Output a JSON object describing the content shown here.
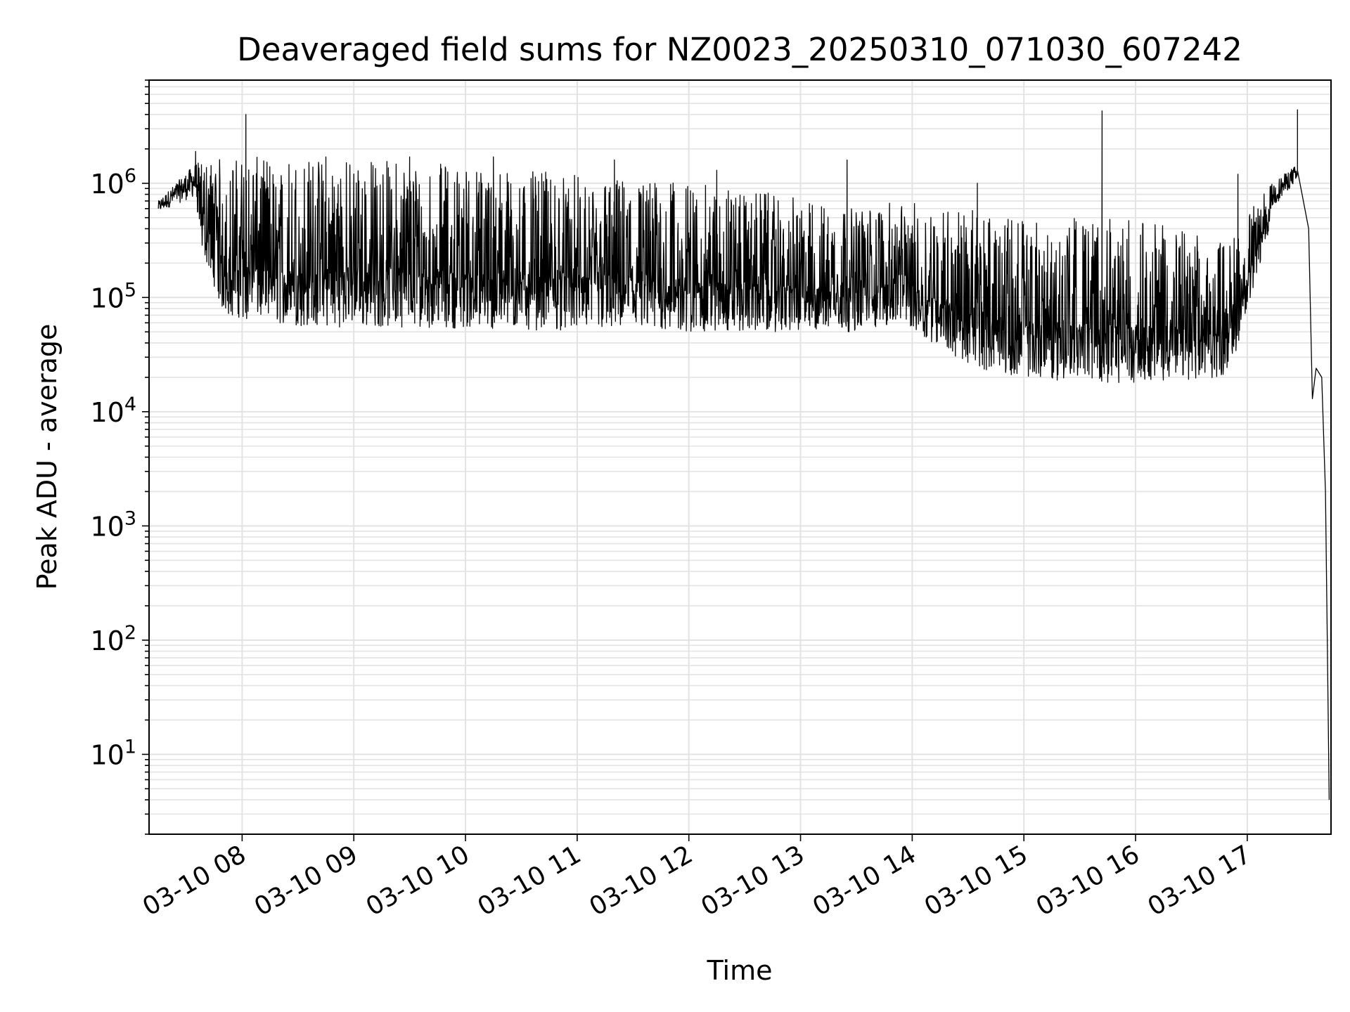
{
  "chart_data": {
    "type": "line",
    "title": "Deaveraged field sums for NZ0023_20250310_071030_607242",
    "xlabel": "Time",
    "ylabel": "Peak ADU - average",
    "xscale": "time",
    "yscale": "log",
    "xlim": [
      "03-10 07:10",
      "03-10 17:45"
    ],
    "ylim": [
      2,
      8000000
    ],
    "grid": "major and minor, light gray",
    "legend": "none",
    "line_color": "#000000",
    "yticks": [
      {
        "value": 10,
        "base": "10",
        "exp": "1"
      },
      {
        "value": 100,
        "base": "10",
        "exp": "2"
      },
      {
        "value": 1000,
        "base": "10",
        "exp": "3"
      },
      {
        "value": 10000,
        "base": "10",
        "exp": "4"
      },
      {
        "value": 100000,
        "base": "10",
        "exp": "5"
      },
      {
        "value": 1000000,
        "base": "10",
        "exp": "6"
      }
    ],
    "xticks": [
      {
        "time": "08:00",
        "label": "03-10 08"
      },
      {
        "time": "09:00",
        "label": "03-10 09"
      },
      {
        "time": "10:00",
        "label": "03-10 10"
      },
      {
        "time": "11:00",
        "label": "03-10 11"
      },
      {
        "time": "12:00",
        "label": "03-10 12"
      },
      {
        "time": "13:00",
        "label": "03-10 13"
      },
      {
        "time": "14:00",
        "label": "03-10 14"
      },
      {
        "time": "15:00",
        "label": "03-10 15"
      },
      {
        "time": "16:00",
        "label": "03-10 16"
      },
      {
        "time": "17:00",
        "label": "03-10 17"
      }
    ],
    "series": [
      {
        "baseline_envelope": [
          {
            "time": "07:15",
            "low": 450000,
            "high": 700000
          },
          {
            "time": "07:35",
            "low": 400000,
            "high": 1500000
          },
          {
            "time": "07:50",
            "low": 70000,
            "high": 1700000
          },
          {
            "time": "08:30",
            "low": 55000,
            "high": 1700000
          },
          {
            "time": "09:30",
            "low": 55000,
            "high": 1600000
          },
          {
            "time": "10:30",
            "low": 52000,
            "high": 1300000
          },
          {
            "time": "11:30",
            "low": 50000,
            "high": 1100000
          },
          {
            "time": "12:30",
            "low": 50000,
            "high": 900000
          },
          {
            "time": "13:30",
            "low": 50000,
            "high": 600000
          },
          {
            "time": "13:55",
            "low": 60000,
            "high": 700000
          },
          {
            "time": "14:30",
            "low": 25000,
            "high": 600000
          },
          {
            "time": "15:00",
            "low": 20000,
            "high": 500000
          },
          {
            "time": "15:30",
            "low": 18000,
            "high": 500000
          },
          {
            "time": "16:00",
            "low": 18000,
            "high": 500000
          },
          {
            "time": "16:50",
            "low": 20000,
            "high": 300000
          },
          {
            "time": "17:10",
            "low": 300000,
            "high": 900000
          },
          {
            "time": "17:25",
            "low": 700000,
            "high": 1400000
          }
        ],
        "peaks": [
          {
            "time": "07:35",
            "value": 1900000
          },
          {
            "time": "08:02",
            "value": 4000000
          },
          {
            "time": "08:45",
            "value": 1700000
          },
          {
            "time": "09:30",
            "value": 1700000
          },
          {
            "time": "10:15",
            "value": 1700000
          },
          {
            "time": "11:20",
            "value": 1600000
          },
          {
            "time": "12:15",
            "value": 1300000
          },
          {
            "time": "13:25",
            "value": 1600000
          },
          {
            "time": "14:35",
            "value": 1000000
          },
          {
            "time": "15:42",
            "value": 4300000
          },
          {
            "time": "16:55",
            "value": 1200000
          },
          {
            "time": "17:27",
            "value": 4400000
          }
        ],
        "tail": [
          {
            "time": "17:27",
            "value": 1300000
          },
          {
            "time": "17:33",
            "value": 400000
          },
          {
            "time": "17:35",
            "value": 13000
          },
          {
            "time": "17:37",
            "value": 24000
          },
          {
            "time": "17:40",
            "value": 20000
          },
          {
            "time": "17:42",
            "value": 2000
          },
          {
            "time": "17:43",
            "value": 100
          },
          {
            "time": "17:44",
            "value": 4
          }
        ]
      }
    ]
  }
}
